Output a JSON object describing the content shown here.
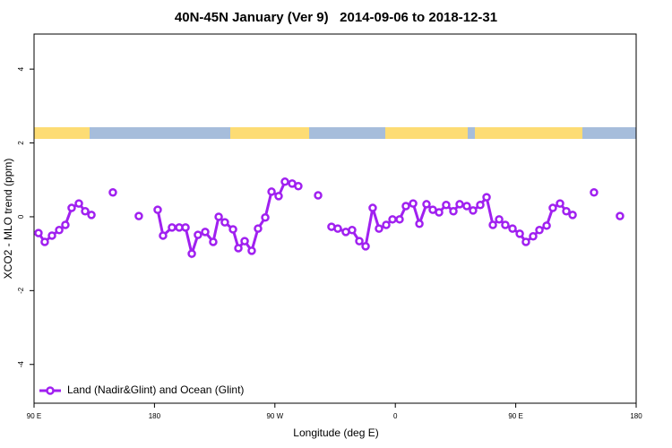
{
  "chart_data": {
    "type": "line",
    "title": "40N-45N January (Ver 9)   2014-09-06 to 2018-12-31",
    "x_label": "Longitude (deg E)",
    "y_label": "XCO2 - MLO trend (ppm)",
    "xlim": [
      90,
      540
    ],
    "xticks": [
      {
        "value": 90,
        "label": "90 E"
      },
      180,
      {
        "value": 270,
        "label": "90 W"
      },
      {
        "value": 360,
        "label": "0"
      },
      {
        "value": 450,
        "label": "90 E"
      },
      {
        "value": 540,
        "label": "180"
      }
    ],
    "ylim": [
      -5.05,
      4.95
    ],
    "yticks": [
      -4,
      -2,
      0,
      2,
      4
    ],
    "legend": "bottom-left",
    "series": [
      {
        "name": "Land (Nadir&Glint) and Ocean (Glint)",
        "color": "#a020f0",
        "x": [
          93.3,
          98,
          103.4,
          108.8,
          113.4,
          118.1,
          123.5,
          128.2,
          132.9,
          148.9,
          168.3,
          182.4,
          186.4,
          193.1,
          198.5,
          203.2,
          207.9,
          212.5,
          217.9,
          223.9,
          228,
          232.6,
          238.7,
          242.7,
          247.4,
          252.7,
          257.4,
          262.8,
          267.5,
          272.8,
          277.5,
          282.9,
          287.5,
          302.3,
          312.3,
          317,
          323,
          327.7,
          333.1,
          337.8,
          343.1,
          347.8,
          353.2,
          357.9,
          363.2,
          367.9,
          373.3,
          378,
          383.3,
          388,
          392.7,
          398,
          403.4,
          408.1,
          413.4,
          418.1,
          423.5,
          428.2,
          432.9,
          437.6,
          442.2,
          447.6,
          453,
          457.6,
          463,
          467.7,
          473.1,
          477.7,
          483.1,
          487.8,
          492.5,
          508.5,
          527.9
        ],
        "values": [
          -0.44,
          -0.68,
          -0.51,
          -0.36,
          -0.22,
          0.24,
          0.36,
          0.15,
          0.05,
          0.66,
          0.02,
          0.19,
          -0.51,
          -0.29,
          -0.29,
          -0.29,
          -1.0,
          -0.49,
          -0.41,
          -0.68,
          0.0,
          -0.15,
          -0.34,
          -0.85,
          -0.66,
          -0.92,
          -0.32,
          -0.02,
          0.68,
          0.56,
          0.95,
          0.9,
          0.83,
          0.58,
          -0.27,
          -0.32,
          -0.41,
          -0.36,
          -0.66,
          -0.8,
          0.24,
          -0.32,
          -0.22,
          -0.07,
          -0.07,
          0.29,
          0.36,
          -0.19,
          0.34,
          0.19,
          0.12,
          0.32,
          0.15,
          0.34,
          0.29,
          0.17,
          0.32,
          0.53,
          -0.22,
          -0.07,
          -0.22,
          -0.32,
          -0.46,
          -0.68,
          -0.53,
          -0.36,
          -0.24,
          0.24,
          0.36,
          0.15,
          0.05,
          0.66,
          0.02
        ]
      }
    ]
  }
}
